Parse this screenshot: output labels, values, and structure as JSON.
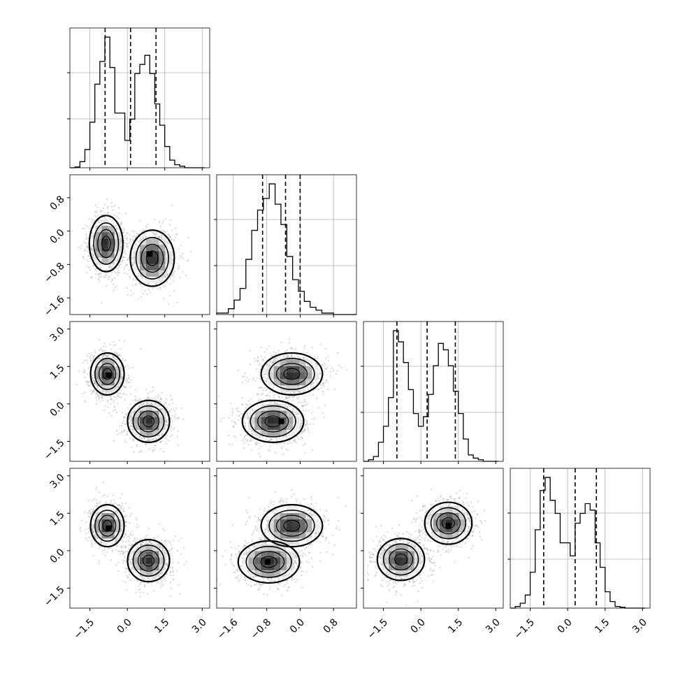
{
  "chart_data": {
    "type": "corner",
    "parameters": 4,
    "grid": true,
    "colors": {
      "line": "#000000",
      "grid": "#b0b0b0",
      "density_dark": "#000000",
      "scatter": "#999999"
    },
    "axes": [
      {
        "range": [
          -2.3,
          3.3
        ],
        "ticks": [
          -1.5,
          0.0,
          1.5,
          3.0
        ],
        "tick_labels": [
          "−1.5",
          "0.0",
          "1.5",
          "3.0"
        ]
      },
      {
        "range": [
          -2.0,
          1.35
        ],
        "ticks": [
          -1.6,
          -0.8,
          0.0,
          0.8
        ],
        "tick_labels": [
          "−1.6",
          "−0.8",
          "0.0",
          "0.8"
        ]
      },
      {
        "range": [
          -2.3,
          3.3
        ],
        "ticks": [
          -1.5,
          0.0,
          1.5,
          3.0
        ],
        "tick_labels": [
          "−1.5",
          "0.0",
          "1.5",
          "3.0"
        ]
      },
      {
        "range": [
          -2.3,
          3.3
        ],
        "ticks": [
          -1.5,
          0.0,
          1.5,
          3.0
        ],
        "tick_labels": [
          "−1.5",
          "0.0",
          "1.5",
          "3.0"
        ]
      }
    ],
    "histograms": [
      {
        "param": 0,
        "quantiles": [
          -0.89,
          0.13,
          1.15
        ],
        "bin_edges": [
          -2.3,
          -2.1,
          -1.9,
          -1.7,
          -1.5,
          -1.3,
          -1.1,
          -0.9,
          -0.7,
          -0.5,
          -0.3,
          -0.1,
          0.1,
          0.3,
          0.5,
          0.7,
          0.9,
          1.1,
          1.3,
          1.5,
          1.7,
          1.9,
          2.1,
          2.3,
          2.5,
          2.7,
          2.9,
          3.1
        ],
        "counts": [
          0,
          0.5,
          4,
          12,
          30,
          55,
          70,
          86,
          66,
          36,
          36,
          18,
          32,
          62,
          68,
          74,
          62,
          42,
          28,
          14,
          5,
          2,
          1,
          0,
          0,
          0,
          0
        ]
      },
      {
        "param": 1,
        "quantiles": [
          -0.9,
          -0.35,
          0.0
        ],
        "bin_edges": [
          -2.0,
          -1.86,
          -1.72,
          -1.58,
          -1.44,
          -1.3,
          -1.16,
          -1.02,
          -0.88,
          -0.74,
          -0.6,
          -0.46,
          -0.32,
          -0.18,
          -0.04,
          0.1,
          0.24,
          0.38,
          0.52,
          0.66,
          0.8,
          0.94,
          1.08,
          1.22,
          1.35
        ],
        "counts": [
          1,
          1,
          4,
          10,
          18,
          38,
          58,
          72,
          80,
          90,
          76,
          62,
          40,
          24,
          16,
          9,
          5,
          3,
          1,
          1,
          0,
          0,
          0,
          0
        ]
      },
      {
        "param": 2,
        "quantiles": [
          -0.96,
          0.25,
          1.38
        ],
        "bin_edges": [
          -2.3,
          -2.1,
          -1.9,
          -1.7,
          -1.5,
          -1.3,
          -1.1,
          -0.9,
          -0.7,
          -0.5,
          -0.3,
          -0.1,
          0.1,
          0.3,
          0.5,
          0.7,
          0.9,
          1.1,
          1.3,
          1.5,
          1.7,
          1.9,
          2.1,
          2.3,
          2.5,
          2.7,
          2.9,
          3.1
        ],
        "counts": [
          0,
          1,
          3,
          12,
          22,
          40,
          82,
          75,
          62,
          45,
          30,
          22,
          28,
          42,
          60,
          74,
          70,
          60,
          44,
          30,
          14,
          4,
          2,
          1,
          0,
          0,
          0
        ]
      },
      {
        "param": 3,
        "quantiles": [
          -0.96,
          0.3,
          1.15
        ],
        "bin_edges": [
          -2.3,
          -2.1,
          -1.9,
          -1.7,
          -1.5,
          -1.3,
          -1.1,
          -0.9,
          -0.7,
          -0.5,
          -0.3,
          -0.1,
          0.1,
          0.3,
          0.5,
          0.7,
          0.9,
          1.1,
          1.3,
          1.5,
          1.7,
          1.9,
          2.1,
          2.3,
          2.5,
          2.7,
          2.9,
          3.1
        ],
        "counts": [
          0,
          1,
          3,
          8,
          22,
          48,
          72,
          80,
          66,
          58,
          40,
          40,
          32,
          52,
          58,
          64,
          60,
          40,
          25,
          10,
          4,
          1,
          0.5,
          0,
          0,
          0,
          0
        ]
      }
    ],
    "scatter_panels": [
      {
        "row": 1,
        "col": 0,
        "modes": [
          {
            "mx": -0.85,
            "my": -0.3,
            "sx": 0.32,
            "sy": 0.32
          },
          {
            "mx": 1.0,
            "my": -0.65,
            "sx": 0.42,
            "sy": 0.32
          }
        ],
        "peak_marker": [
          0.9,
          -0.55
        ]
      },
      {
        "row": 2,
        "col": 0,
        "modes": [
          {
            "mx": -0.8,
            "my": 1.2,
            "sx": 0.32,
            "sy": 0.4
          },
          {
            "mx": 0.85,
            "my": -0.7,
            "sx": 0.4,
            "sy": 0.4
          }
        ],
        "peak_marker": [
          -0.75,
          1.15
        ]
      },
      {
        "row": 2,
        "col": 1,
        "modes": [
          {
            "mx": -0.2,
            "my": 1.2,
            "sx": 0.35,
            "sy": 0.4
          },
          {
            "mx": -0.65,
            "my": -0.7,
            "sx": 0.35,
            "sy": 0.4
          }
        ],
        "peak_marker": [
          -0.45,
          -0.7
        ]
      },
      {
        "row": 3,
        "col": 0,
        "modes": [
          {
            "mx": -0.8,
            "my": 1.0,
            "sx": 0.32,
            "sy": 0.4
          },
          {
            "mx": 0.85,
            "my": -0.4,
            "sx": 0.4,
            "sy": 0.4
          }
        ],
        "peak_marker": [
          -0.75,
          0.9
        ]
      },
      {
        "row": 3,
        "col": 1,
        "modes": [
          {
            "mx": -0.2,
            "my": 1.0,
            "sx": 0.35,
            "sy": 0.4
          },
          {
            "mx": -0.75,
            "my": -0.45,
            "sx": 0.35,
            "sy": 0.4
          }
        ],
        "peak_marker": [
          -0.78,
          -0.45
        ]
      },
      {
        "row": 3,
        "col": 2,
        "modes": [
          {
            "mx": -0.8,
            "my": -0.35,
            "sx": 0.45,
            "sy": 0.4
          },
          {
            "mx": 1.1,
            "my": 1.1,
            "sx": 0.45,
            "sy": 0.4
          }
        ],
        "peak_marker": [
          1.1,
          1.0
        ]
      }
    ]
  }
}
